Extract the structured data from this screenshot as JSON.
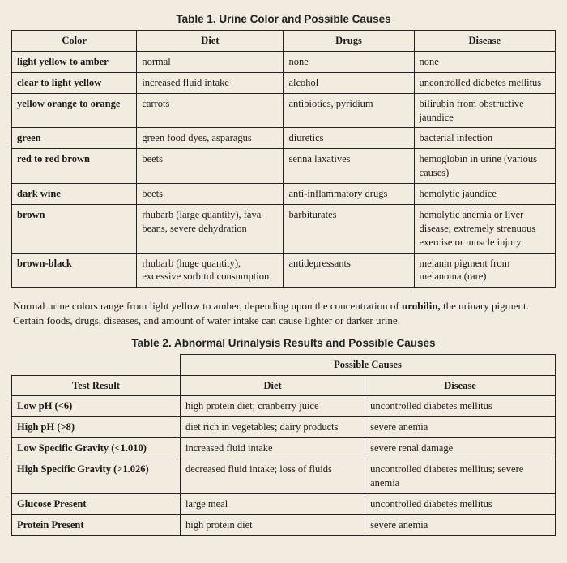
{
  "table1": {
    "title": "Table 1. Urine Color and Possible Causes",
    "headers": [
      "Color",
      "Diet",
      "Drugs",
      "Disease"
    ],
    "rows": [
      {
        "color": "light yellow to amber",
        "diet": "normal",
        "drugs": "none",
        "disease": "none"
      },
      {
        "color": "clear to light yellow",
        "diet": "increased fluid intake",
        "drugs": "alcohol",
        "disease": "uncontrolled diabetes mellitus"
      },
      {
        "color": "yellow orange to orange",
        "diet": "carrots",
        "drugs": "antibiotics, pyridium",
        "disease": "bilirubin from obstructive jaundice"
      },
      {
        "color": "green",
        "diet": "green food dyes, asparagus",
        "drugs": "diuretics",
        "disease": "bacterial infection"
      },
      {
        "color": "red to red brown",
        "diet": "beets",
        "drugs": "senna laxatives",
        "disease": "hemoglobin in urine (various causes)"
      },
      {
        "color": "dark wine",
        "diet": "beets",
        "drugs": "anti-inflammatory drugs",
        "disease": "hemolytic jaundice"
      },
      {
        "color": "brown",
        "diet": "rhubarb (large quantity), fava beans, severe dehydration",
        "drugs": "barbiturates",
        "disease": "hemolytic anemia or liver disease; extremely strenuous exercise or muscle injury"
      },
      {
        "color": "brown-black",
        "diet": "rhubarb (huge quantity), excessive sorbitol consumption",
        "drugs": "antidepressants",
        "disease": "melanin pigment from melanoma (rare)"
      }
    ]
  },
  "paragraph": {
    "pre": "Normal urine colors range from light yellow to amber, depending upon the concentration of ",
    "bold": "urobilin,",
    "post": " the urinary pigment. Certain foods, drugs, diseases, and amount of water intake can cause lighter or darker urine."
  },
  "table2": {
    "title": "Table 2. Abnormal Urinalysis Results and Possible Causes",
    "group_header": "Possible Causes",
    "headers": [
      "Test Result",
      "Diet",
      "Disease"
    ],
    "rows": [
      {
        "test": "Low pH (<6)",
        "diet": "high protein diet; cranberry juice",
        "disease": "uncontrolled diabetes mellitus"
      },
      {
        "test": "High pH (>8)",
        "diet": "diet rich in vegetables; dairy products",
        "disease": "severe anemia"
      },
      {
        "test": "Low Specific Gravity (<1.010)",
        "diet": "increased fluid intake",
        "disease": "severe renal damage"
      },
      {
        "test": "High Specific Gravity (>1.026)",
        "diet": "decreased fluid intake; loss of fluids",
        "disease": "uncontrolled diabetes mellitus; severe anemia"
      },
      {
        "test": "Glucose Present",
        "diet": "large meal",
        "disease": "uncontrolled diabetes mellitus"
      },
      {
        "test": "Protein Present",
        "diet": "high protein diet",
        "disease": "severe anemia"
      }
    ]
  },
  "style": {
    "background_color": "#f2ece0",
    "border_color": "#222222",
    "title_font": "Arial, sans-serif",
    "body_font": "Georgia, serif",
    "title_fontsize": 13.5,
    "cell_fontsize": 12.5,
    "paragraph_fontsize": 13
  }
}
